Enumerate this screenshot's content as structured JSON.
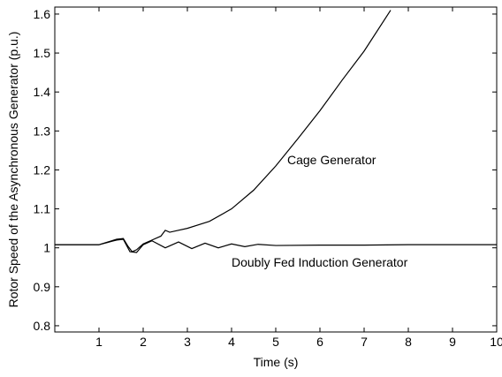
{
  "chart_data": {
    "type": "line",
    "x_label": "Time (s)",
    "y_label": "Rotor Speed of the Asynchronous Generator (p.u.)",
    "annotations": [
      "Cage Generator",
      "Doubly Fed Induction Generator"
    ],
    "xlim": [
      0,
      10
    ],
    "ylim": [
      0.784,
      1.618
    ],
    "xticks": [
      1,
      2,
      3,
      4,
      5,
      6,
      7,
      8,
      9,
      10
    ],
    "yticks": [
      0.8,
      0.9,
      1,
      1.1,
      1.2,
      1.3,
      1.4,
      1.5,
      1.6
    ],
    "grid": false,
    "series": [
      {
        "color": "#000000",
        "x": [
          0,
          1,
          1.2,
          1.4,
          1.55,
          1.65,
          1.75,
          1.85,
          2.0,
          2.2,
          2.4,
          2.5,
          2.6,
          2.8,
          3.0,
          3.5,
          4.0,
          4.5,
          5.0,
          5.5,
          6.0,
          6.5,
          7.0,
          7.6
        ],
        "values": [
          1.008,
          1.008,
          1.015,
          1.022,
          1.024,
          1.005,
          0.99,
          0.995,
          1.01,
          1.02,
          1.03,
          1.045,
          1.04,
          1.045,
          1.05,
          1.068,
          1.1,
          1.148,
          1.21,
          1.28,
          1.352,
          1.43,
          1.505,
          1.61
        ]
      },
      {
        "color": "#000000",
        "x": [
          0,
          1,
          1.2,
          1.4,
          1.55,
          1.7,
          1.85,
          2.0,
          2.2,
          2.5,
          2.8,
          3.1,
          3.4,
          3.7,
          4.0,
          4.3,
          4.6,
          5.0,
          6.0,
          7.0,
          8.0,
          9.0,
          10.0
        ],
        "values": [
          1.008,
          1.008,
          1.014,
          1.02,
          1.022,
          0.99,
          0.988,
          1.008,
          1.018,
          1.0,
          1.015,
          0.998,
          1.012,
          1.0,
          1.01,
          1.003,
          1.009,
          1.006,
          1.007,
          1.007,
          1.008,
          1.008,
          1.008
        ]
      }
    ]
  }
}
